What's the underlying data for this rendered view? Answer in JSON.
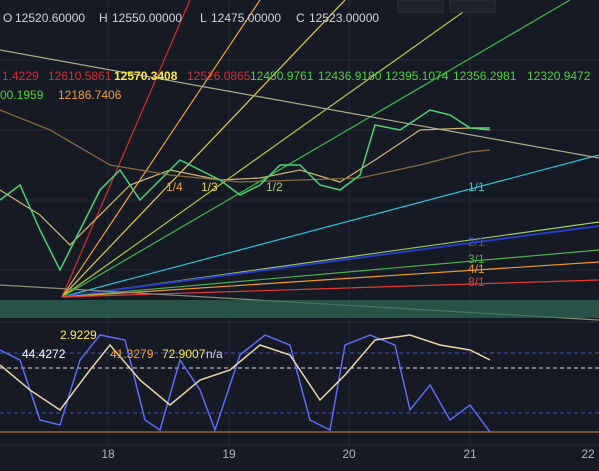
{
  "header": {
    "open_label": "O",
    "open": "12520.60000",
    "high_label": "H",
    "high": "12550.00000",
    "low_label": "L",
    "low": "12475.00000",
    "close_label": "C",
    "close": "12523.00000"
  },
  "levels_row1": [
    "1.4229",
    "12610.5861",
    "12570.3408",
    "12526.0865",
    "12480.9761",
    "12436.9180",
    "12395.1074",
    "12356.2981",
    "12320.9472"
  ],
  "levels_row2": [
    "00.1959",
    "12186.7406"
  ],
  "fan_labels": [
    "1/4",
    "1/3",
    "1/2",
    "1/1",
    "2/1",
    "3/1",
    "4/1",
    "8/1"
  ],
  "indicator_labels": [
    "2.9229",
    "44.4272",
    "41.3279",
    "72.9007",
    "n/a"
  ],
  "x_axis": [
    "18",
    "19",
    "20",
    "21",
    "22"
  ]
}
